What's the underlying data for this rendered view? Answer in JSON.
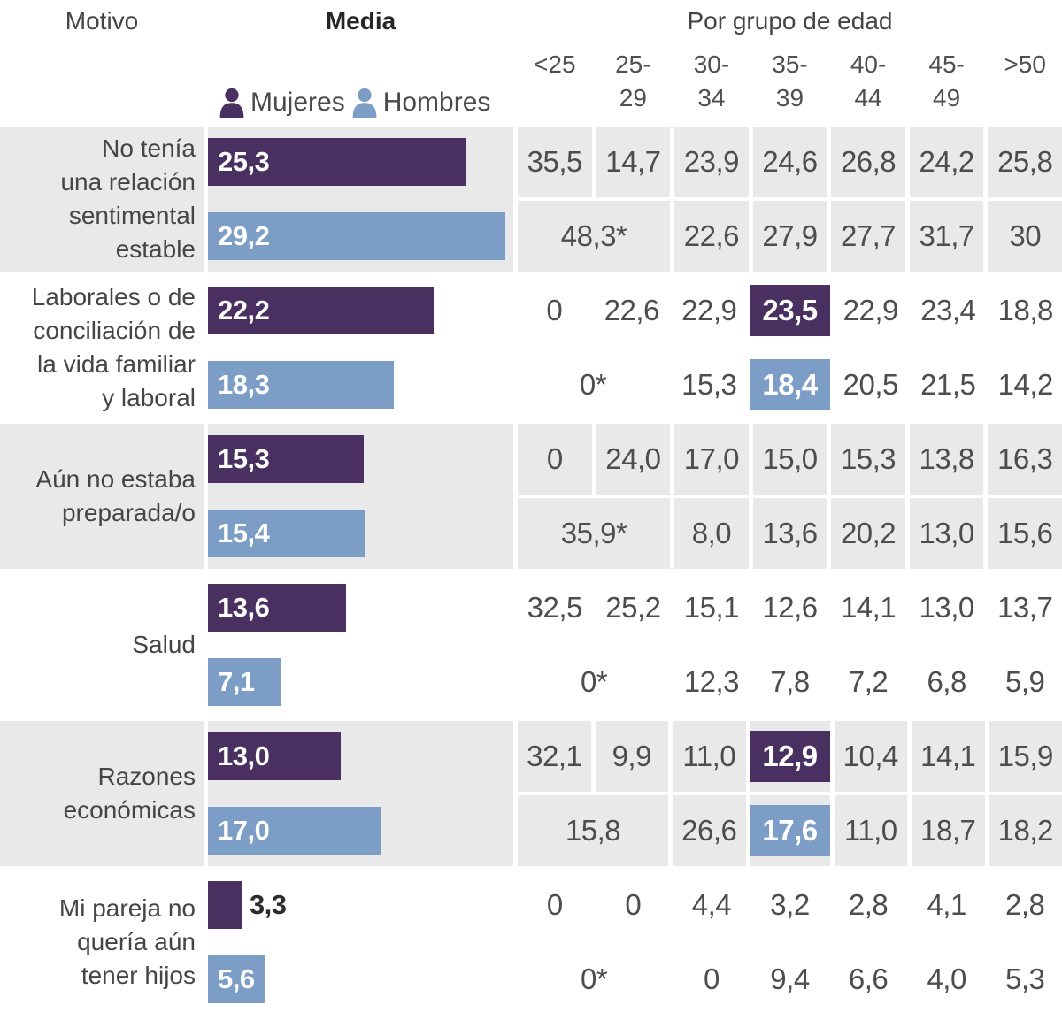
{
  "colors": {
    "mujeres": "#4a3060",
    "hombres": "#7c9dc5",
    "band": "#e9e9e9"
  },
  "header": {
    "motivo_label": "Motivo",
    "media_label": "Media",
    "age_title": "Por grupo de edad",
    "age_groups": [
      "<25",
      "25-\n29",
      "30-\n34",
      "35-\n39",
      "40-\n44",
      "45-\n49",
      ">50"
    ],
    "legend": [
      {
        "name": "Mujeres",
        "color": "#4a3060"
      },
      {
        "name": "Hombres",
        "color": "#7c9dc5"
      }
    ]
  },
  "rows": [
    {
      "label": "No tenía\nuna relación\nsentimental\nestable",
      "shaded": true,
      "mujeres": {
        "media_label": "25,3",
        "media": 25.3,
        "cells": [
          {
            "t": "35,5"
          },
          {
            "t": "14,7"
          },
          {
            "t": "23,9"
          },
          {
            "t": "24,6"
          },
          {
            "t": "26,8"
          },
          {
            "t": "24,2"
          },
          {
            "t": "25,8"
          }
        ]
      },
      "hombres": {
        "media_label": "29,2",
        "media": 29.2,
        "cells": [
          {
            "t": "48,3*",
            "span": 2
          },
          {
            "t": "22,6"
          },
          {
            "t": "27,9"
          },
          {
            "t": "27,7"
          },
          {
            "t": "31,7"
          },
          {
            "t": "30"
          }
        ]
      }
    },
    {
      "label": "Laborales o de\nconciliación de\nla vida familiar\ny laboral",
      "shaded": false,
      "mujeres": {
        "media_label": "22,2",
        "media": 22.2,
        "cells": [
          {
            "t": "0"
          },
          {
            "t": "22,6"
          },
          {
            "t": "22,9"
          },
          {
            "t": "23,5",
            "hl": true
          },
          {
            "t": "22,9"
          },
          {
            "t": "23,4"
          },
          {
            "t": "18,8"
          }
        ]
      },
      "hombres": {
        "media_label": "18,3",
        "media": 18.3,
        "cells": [
          {
            "t": "0*",
            "span": 2
          },
          {
            "t": "15,3"
          },
          {
            "t": "18,4",
            "hl": true
          },
          {
            "t": "20,5"
          },
          {
            "t": "21,5"
          },
          {
            "t": "14,2"
          }
        ]
      }
    },
    {
      "label": "Aún no estaba\npreparada/o",
      "shaded": true,
      "mujeres": {
        "media_label": "15,3",
        "media": 15.3,
        "cells": [
          {
            "t": "0"
          },
          {
            "t": "24,0"
          },
          {
            "t": "17,0"
          },
          {
            "t": "15,0"
          },
          {
            "t": "15,3"
          },
          {
            "t": "13,8"
          },
          {
            "t": "16,3"
          }
        ]
      },
      "hombres": {
        "media_label": "15,4",
        "media": 15.4,
        "cells": [
          {
            "t": "35,9*",
            "span": 2
          },
          {
            "t": "8,0"
          },
          {
            "t": "13,6"
          },
          {
            "t": "20,2"
          },
          {
            "t": "13,0"
          },
          {
            "t": "15,6"
          }
        ]
      }
    },
    {
      "label": "Salud",
      "shaded": false,
      "mujeres": {
        "media_label": "13,6",
        "media": 13.6,
        "cells": [
          {
            "t": "32,5"
          },
          {
            "t": "25,2"
          },
          {
            "t": "15,1"
          },
          {
            "t": "12,6"
          },
          {
            "t": "14,1"
          },
          {
            "t": "13,0"
          },
          {
            "t": "13,7"
          }
        ]
      },
      "hombres": {
        "media_label": "7,1",
        "media": 7.1,
        "cells": [
          {
            "t": "0*",
            "span": 2
          },
          {
            "t": "12,3"
          },
          {
            "t": "7,8"
          },
          {
            "t": "7,2"
          },
          {
            "t": "6,8"
          },
          {
            "t": "5,9"
          }
        ]
      }
    },
    {
      "label": "Razones\neconómicas",
      "shaded": true,
      "mujeres": {
        "media_label": "13,0",
        "media": 13.0,
        "cells": [
          {
            "t": "32,1"
          },
          {
            "t": "9,9"
          },
          {
            "t": "11,0"
          },
          {
            "t": "12,9",
            "hl": true
          },
          {
            "t": "10,4"
          },
          {
            "t": "14,1"
          },
          {
            "t": "15,9"
          }
        ]
      },
      "hombres": {
        "media_label": "17,0",
        "media": 17.0,
        "cells": [
          {
            "t": "15,8",
            "span": 2
          },
          {
            "t": "26,6"
          },
          {
            "t": "17,6",
            "hl": true
          },
          {
            "t": "11,0"
          },
          {
            "t": "18,7"
          },
          {
            "t": "18,2"
          }
        ]
      }
    },
    {
      "label": "Mi pareja no\nquería aún\ntener hijos",
      "shaded": false,
      "mujeres": {
        "media_label": "3,3",
        "media": 3.3,
        "cells": [
          {
            "t": "0"
          },
          {
            "t": "0"
          },
          {
            "t": "4,4"
          },
          {
            "t": "3,2"
          },
          {
            "t": "2,8"
          },
          {
            "t": "4,1"
          },
          {
            "t": "2,8"
          }
        ]
      },
      "hombres": {
        "media_label": "5,6",
        "media": 5.6,
        "cells": [
          {
            "t": "0*",
            "span": 2
          },
          {
            "t": "0"
          },
          {
            "t": "9,4"
          },
          {
            "t": "6,6"
          },
          {
            "t": "4,0"
          },
          {
            "t": "5,3"
          }
        ]
      }
    }
  ],
  "chart_data": {
    "type": "bar",
    "orientation": "horizontal",
    "grid": false,
    "legend_position": "top",
    "title": "Motivo / Media / Por grupo de edad",
    "categories": [
      "No tenía una relación sentimental estable",
      "Laborales o de conciliación de la vida familiar y laboral",
      "Aún no estaba preparada/o",
      "Salud",
      "Razones económicas",
      "Mi pareja no quería aún tener hijos"
    ],
    "series": [
      {
        "name": "Mujeres",
        "color": "#4a3060",
        "media": [
          25.3,
          22.2,
          15.3,
          13.6,
          13.0,
          3.3
        ]
      },
      {
        "name": "Hombres",
        "color": "#7c9dc5",
        "media": [
          29.2,
          18.3,
          15.4,
          7.1,
          17.0,
          5.6
        ]
      }
    ],
    "age_groups": [
      "<25",
      "25-29",
      "30-34",
      "35-39",
      "40-44",
      "45-49",
      ">50"
    ],
    "by_age_mujeres": [
      [
        35.5,
        14.7,
        23.9,
        24.6,
        26.8,
        24.2,
        25.8
      ],
      [
        0,
        22.6,
        22.9,
        23.5,
        22.9,
        23.4,
        18.8
      ],
      [
        0,
        24.0,
        17.0,
        15.0,
        15.3,
        13.8,
        16.3
      ],
      [
        32.5,
        25.2,
        15.1,
        12.6,
        14.1,
        13.0,
        13.7
      ],
      [
        32.1,
        9.9,
        11.0,
        12.9,
        10.4,
        14.1,
        15.9
      ],
      [
        0,
        0,
        4.4,
        3.2,
        2.8,
        4.1,
        2.8
      ]
    ],
    "by_age_hombres_first_value_spans_under30": true,
    "by_age_hombres": [
      [
        48.3,
        22.6,
        27.9,
        27.7,
        31.7,
        30
      ],
      [
        0,
        15.3,
        18.4,
        20.5,
        21.5,
        14.2
      ],
      [
        35.9,
        8.0,
        13.6,
        20.2,
        13.0,
        15.6
      ],
      [
        0,
        12.3,
        7.8,
        7.2,
        6.8,
        5.9
      ],
      [
        15.8,
        26.6,
        17.6,
        11.0,
        18.7,
        18.2
      ],
      [
        0,
        0,
        9.4,
        6.6,
        4.0,
        5.3
      ]
    ],
    "highlighted_cells": [
      {
        "category_index": 1,
        "series": "Mujeres",
        "age_group": "35-39",
        "value": 23.5
      },
      {
        "category_index": 1,
        "series": "Hombres",
        "age_group": "35-39",
        "value": 18.4
      },
      {
        "category_index": 4,
        "series": "Mujeres",
        "age_group": "35-39",
        "value": 12.9
      },
      {
        "category_index": 4,
        "series": "Hombres",
        "age_group": "35-39",
        "value": 17.6
      }
    ]
  }
}
